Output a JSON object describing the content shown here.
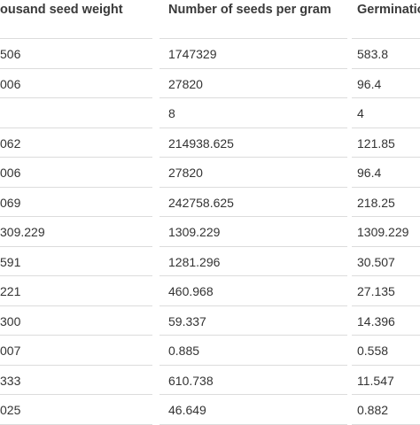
{
  "table": {
    "header": [
      "ousand seed weight",
      "Number of seeds per gram",
      "Germinatio"
    ],
    "rows": [
      [
        "506",
        "1747329",
        "583.8"
      ],
      [
        "006",
        "27820",
        "96.4"
      ],
      [
        "",
        "8",
        "4"
      ],
      [
        "062",
        "214938.625",
        "121.85"
      ],
      [
        "006",
        "27820",
        "96.4"
      ],
      [
        "069",
        "242758.625",
        "218.25"
      ],
      [
        "309.229",
        "1309.229",
        "1309.229"
      ],
      [
        "591",
        "1281.296",
        "30.507"
      ],
      [
        "221",
        "460.968",
        "27.135"
      ],
      [
        "300",
        "59.337",
        "14.396"
      ],
      [
        "007",
        "0.885",
        "0.558"
      ],
      [
        "333",
        "610.738",
        "11.547"
      ],
      [
        "025",
        "46.649",
        "0.882"
      ]
    ]
  }
}
